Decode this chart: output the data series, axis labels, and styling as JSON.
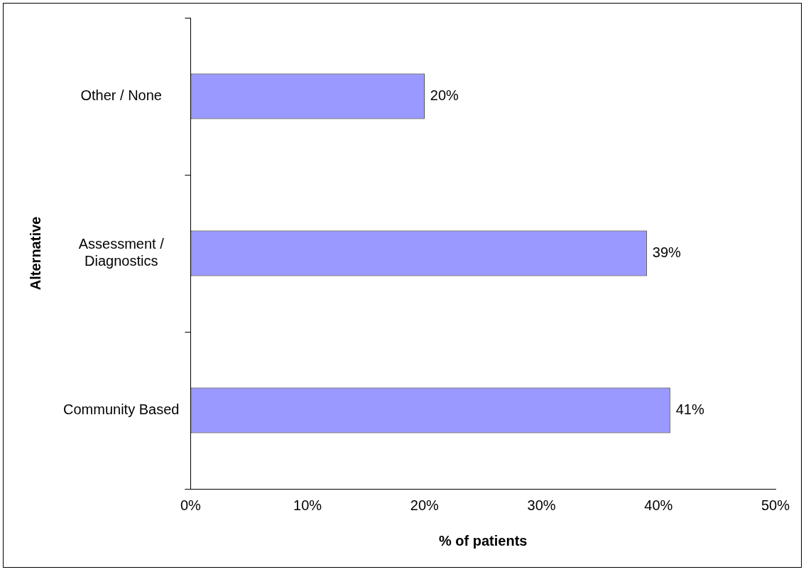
{
  "chart_data": {
    "type": "bar",
    "orientation": "horizontal",
    "categories": [
      "Other / None",
      "Assessment / Diagnostics",
      "Community Based"
    ],
    "values": [
      20,
      39,
      41
    ],
    "color": "#9999ff",
    "value_labels": [
      "20%",
      "39%",
      "41%"
    ],
    "xlim": [
      0,
      50
    ],
    "xticks": [
      {
        "value": 0,
        "label": "0%"
      },
      {
        "value": 10,
        "label": "10%"
      },
      {
        "value": 20,
        "label": "20%"
      },
      {
        "value": 30,
        "label": "30%"
      },
      {
        "value": 40,
        "label": "40%"
      },
      {
        "value": 50,
        "label": "50%"
      }
    ],
    "xlabel": "% of patients",
    "ylabel": "Alternative",
    "grid": false,
    "legend": false
  }
}
